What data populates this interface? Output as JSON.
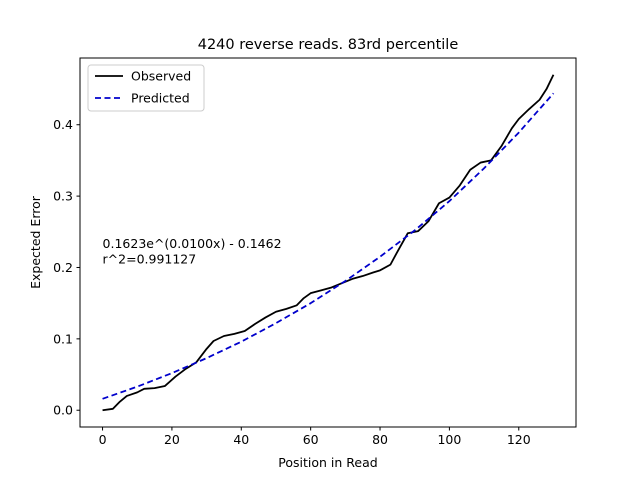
{
  "chart_data": {
    "type": "line",
    "title": "4240 reverse reads. 83rd percentile",
    "xlabel": "Position in Read",
    "ylabel": "Expected Error",
    "xlim": [
      -6.5,
      136.5
    ],
    "ylim": [
      -0.0235,
      0.4935
    ],
    "xticks": [
      0,
      20,
      40,
      60,
      80,
      100,
      120
    ],
    "yticks": [
      0.0,
      0.1,
      0.2,
      0.3,
      0.4
    ],
    "xtick_labels": [
      "0",
      "20",
      "40",
      "60",
      "80",
      "100",
      "120"
    ],
    "ytick_labels": [
      "0.0",
      "0.1",
      "0.2",
      "0.3",
      "0.4"
    ],
    "grid": false,
    "legend_position": "top-left",
    "annotation": {
      "lines": [
        "0.1623e^(0.0100x) - 0.1462",
        "r^2=0.991127"
      ],
      "x": 0,
      "y": 0.227
    },
    "series": [
      {
        "name": "Observed",
        "color": "#000000",
        "style": "solid",
        "x": [
          0,
          3,
          5,
          7,
          10,
          12,
          15,
          18,
          21,
          24,
          27,
          30,
          32,
          35,
          38,
          41,
          44,
          47,
          50,
          53,
          56,
          58,
          60,
          63,
          66,
          69,
          72,
          75,
          78,
          80,
          83,
          85,
          88,
          91,
          94,
          97,
          100,
          103,
          106,
          109,
          112,
          115,
          118,
          120,
          123,
          126,
          128,
          130
        ],
        "y": [
          0.0,
          0.002,
          0.012,
          0.02,
          0.025,
          0.03,
          0.031,
          0.034,
          0.047,
          0.058,
          0.067,
          0.086,
          0.097,
          0.104,
          0.107,
          0.111,
          0.121,
          0.13,
          0.138,
          0.142,
          0.147,
          0.157,
          0.164,
          0.168,
          0.172,
          0.178,
          0.184,
          0.188,
          0.193,
          0.196,
          0.204,
          0.222,
          0.248,
          0.251,
          0.265,
          0.29,
          0.298,
          0.315,
          0.337,
          0.347,
          0.35,
          0.37,
          0.395,
          0.408,
          0.422,
          0.435,
          0.45,
          0.47
        ]
      },
      {
        "name": "Predicted",
        "color": "#0000cc",
        "style": "dashed",
        "x": [
          0,
          10,
          20,
          30,
          40,
          50,
          60,
          70,
          80,
          90,
          100,
          110,
          120,
          130
        ],
        "y": [
          0.016,
          0.033,
          0.052,
          0.073,
          0.096,
          0.122,
          0.15,
          0.181,
          0.215,
          0.252,
          0.293,
          0.339,
          0.389,
          0.444
        ]
      }
    ]
  }
}
